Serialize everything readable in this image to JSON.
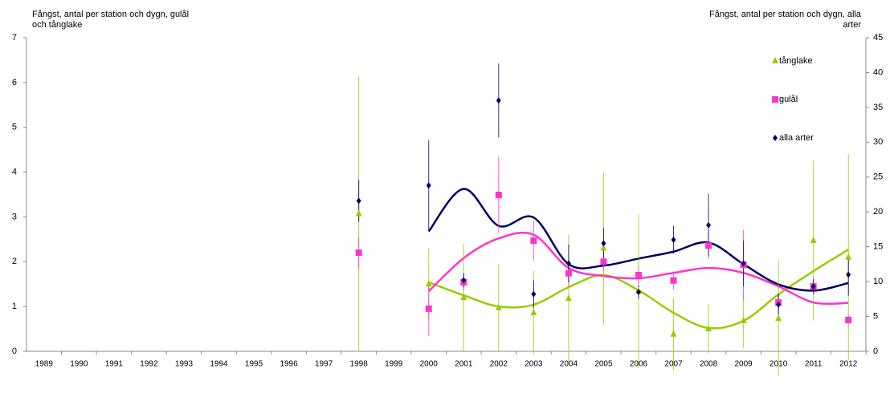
{
  "chart_data": {
    "type": "line-errorbar",
    "y_label": [
      "Fångst, antal per station och dygn, gulål",
      "och tånglake"
    ],
    "y2_label": [
      "Fångst, antal per station och dygn,  alla",
      "arter"
    ],
    "categories": [
      "1989",
      "1990",
      "1991",
      "1992",
      "1993",
      "1994",
      "1995",
      "1996",
      "1997",
      "1998",
      "1999",
      "2000",
      "2001",
      "2002",
      "2003",
      "2004",
      "2005",
      "2006",
      "2007",
      "2008",
      "2009",
      "2010",
      "2011",
      "2012"
    ],
    "ylim": [
      0,
      7
    ],
    "yticks": [
      0,
      1,
      2,
      3,
      4,
      5,
      6,
      7
    ],
    "y2lim": [
      0,
      45
    ],
    "y2ticks": [
      0,
      5,
      10,
      15,
      20,
      25,
      30,
      35,
      40,
      45
    ],
    "legend": "upper-right",
    "series": [
      {
        "name": "tånglake",
        "color": "#99cc00",
        "marker": "triangle",
        "axis": "y",
        "values": [
          null,
          null,
          null,
          null,
          null,
          null,
          null,
          null,
          null,
          3.07,
          null,
          1.5,
          1.2,
          0.97,
          0.86,
          1.18,
          2.3,
          1.34,
          0.38,
          0.5,
          0.68,
          0.73,
          2.47,
          2.1
        ],
        "errors": [
          null,
          null,
          null,
          null,
          null,
          null,
          null,
          null,
          null,
          3.08,
          null,
          0.8,
          1.2,
          0.98,
          0.93,
          1.42,
          1.7,
          1.72,
          0.8,
          0.55,
          0.6,
          1.29,
          1.78,
          2.3
        ],
        "trend": [
          null,
          null,
          null,
          null,
          null,
          null,
          null,
          null,
          null,
          null,
          null,
          1.54,
          1.25,
          1.0,
          1.04,
          1.43,
          1.7,
          1.36,
          0.86,
          0.52,
          0.68,
          1.27,
          1.79,
          2.27
        ]
      },
      {
        "name": "gulål",
        "color": "#ff33cc",
        "marker": "square",
        "axis": "y",
        "values": [
          null,
          null,
          null,
          null,
          null,
          null,
          null,
          null,
          null,
          2.2,
          null,
          0.95,
          1.54,
          3.49,
          2.47,
          1.74,
          2.0,
          1.7,
          1.58,
          2.36,
          1.93,
          1.09,
          1.45,
          0.7
        ],
        "errors": [
          null,
          null,
          null,
          null,
          null,
          null,
          null,
          null,
          null,
          0.35,
          null,
          0.6,
          0.2,
          0.85,
          0.45,
          0.3,
          0.2,
          0.2,
          0.2,
          0.3,
          0.78,
          0.2,
          0.2,
          0.1
        ],
        "trend": [
          null,
          null,
          null,
          null,
          null,
          null,
          null,
          null,
          null,
          null,
          null,
          1.34,
          2.08,
          2.52,
          2.6,
          1.86,
          1.68,
          1.63,
          1.75,
          1.86,
          1.75,
          1.45,
          1.09,
          1.08
        ]
      },
      {
        "name": "alla arter",
        "color": "#000066",
        "marker": "diamond",
        "axis": "y2",
        "values": [
          null,
          null,
          null,
          null,
          null,
          null,
          null,
          null,
          null,
          21.6,
          null,
          23.8,
          10.2,
          36,
          8.2,
          12.6,
          15.5,
          8.5,
          16,
          18.1,
          12.6,
          6.7,
          9.3,
          11
        ],
        "errors": [
          null,
          null,
          null,
          null,
          null,
          null,
          null,
          null,
          null,
          3,
          null,
          6.5,
          1,
          5.3,
          2,
          2.7,
          2.2,
          1,
          2,
          4.5,
          3.3,
          1.5,
          1,
          3
        ],
        "trend": [
          null,
          null,
          null,
          null,
          null,
          null,
          null,
          null,
          null,
          null,
          null,
          17.2,
          23.3,
          18,
          19.2,
          12.5,
          12.3,
          13.3,
          14.3,
          15.6,
          12.5,
          9.6,
          8.7,
          9.8
        ]
      }
    ]
  }
}
